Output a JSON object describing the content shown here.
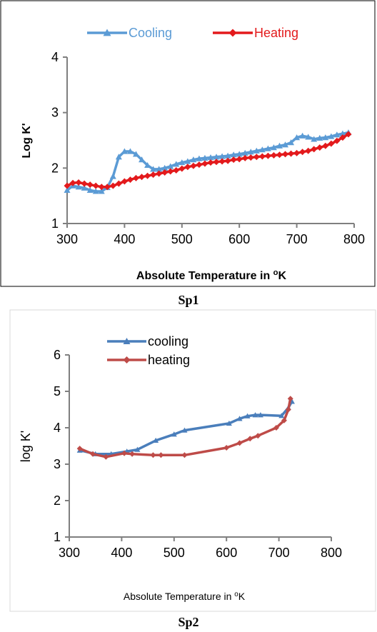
{
  "chart_data": [
    {
      "type": "line",
      "caption": "Sp1",
      "xlabel": "Absolute Temperature in ",
      "xlabel_sup": "o",
      "xlabel_tail": "K",
      "ylabel": "Log K'",
      "xlim": [
        300,
        800
      ],
      "ylim": [
        1,
        4
      ],
      "xticks": [
        300,
        400,
        500,
        600,
        700,
        800
      ],
      "yticks": [
        1,
        2,
        3,
        4
      ],
      "legend": "top",
      "grid": false,
      "series": [
        {
          "name": "Cooling",
          "color": "#5b9bd5",
          "marker": "triangle",
          "x": [
            300,
            310,
            320,
            330,
            340,
            350,
            360,
            370,
            380,
            390,
            400,
            410,
            420,
            430,
            440,
            450,
            460,
            470,
            480,
            490,
            500,
            510,
            520,
            530,
            540,
            550,
            560,
            570,
            580,
            590,
            600,
            610,
            620,
            630,
            640,
            650,
            660,
            670,
            680,
            690,
            700,
            710,
            720,
            730,
            740,
            750,
            760,
            770,
            780,
            790
          ],
          "y": [
            1.6,
            1.68,
            1.66,
            1.64,
            1.6,
            1.58,
            1.58,
            1.65,
            1.85,
            2.2,
            2.3,
            2.3,
            2.25,
            2.15,
            2.05,
            1.98,
            1.98,
            2.0,
            2.03,
            2.07,
            2.1,
            2.12,
            2.15,
            2.17,
            2.18,
            2.19,
            2.2,
            2.21,
            2.22,
            2.24,
            2.25,
            2.27,
            2.29,
            2.31,
            2.33,
            2.35,
            2.37,
            2.4,
            2.42,
            2.46,
            2.55,
            2.58,
            2.56,
            2.52,
            2.54,
            2.55,
            2.57,
            2.6,
            2.62,
            2.64
          ]
        },
        {
          "name": "Heating",
          "color": "#e31a1c",
          "marker": "diamond",
          "x": [
            300,
            310,
            320,
            330,
            340,
            350,
            360,
            370,
            380,
            390,
            400,
            410,
            420,
            430,
            440,
            450,
            460,
            470,
            480,
            490,
            500,
            510,
            520,
            530,
            540,
            550,
            560,
            570,
            580,
            590,
            600,
            610,
            620,
            630,
            640,
            650,
            660,
            670,
            680,
            690,
            700,
            710,
            720,
            730,
            740,
            750,
            760,
            770,
            780,
            790
          ],
          "y": [
            1.68,
            1.73,
            1.74,
            1.72,
            1.7,
            1.68,
            1.66,
            1.66,
            1.68,
            1.72,
            1.76,
            1.79,
            1.82,
            1.84,
            1.86,
            1.88,
            1.9,
            1.92,
            1.94,
            1.96,
            1.99,
            2.02,
            2.04,
            2.06,
            2.08,
            2.1,
            2.11,
            2.12,
            2.13,
            2.15,
            2.16,
            2.18,
            2.19,
            2.2,
            2.21,
            2.22,
            2.23,
            2.24,
            2.25,
            2.26,
            2.27,
            2.29,
            2.31,
            2.34,
            2.37,
            2.4,
            2.44,
            2.49,
            2.55,
            2.61
          ]
        }
      ]
    },
    {
      "type": "line",
      "caption": "Sp2",
      "xlabel": "Absolute Temperature in ",
      "xlabel_sup": "o",
      "xlabel_tail": "K",
      "ylabel": "log  K'",
      "xlim": [
        300,
        800
      ],
      "ylim": [
        1,
        6
      ],
      "xticks": [
        300,
        400,
        500,
        600,
        700,
        800
      ],
      "yticks": [
        1,
        2,
        3,
        4,
        5,
        6
      ],
      "legend": "top-left",
      "grid": false,
      "series": [
        {
          "name": "cooling",
          "color": "#4a7ebb",
          "marker": "triangle",
          "x": [
            320,
            350,
            380,
            410,
            430,
            465,
            500,
            520,
            605,
            625,
            640,
            655,
            665,
            705,
            718,
            725
          ],
          "y": [
            3.38,
            3.28,
            3.28,
            3.35,
            3.4,
            3.65,
            3.82,
            3.93,
            4.12,
            4.25,
            4.32,
            4.35,
            4.35,
            4.33,
            4.55,
            4.72
          ]
        },
        {
          "name": "heating",
          "color": "#be4b48",
          "marker": "diamond",
          "x": [
            320,
            345,
            370,
            405,
            420,
            460,
            475,
            520,
            600,
            625,
            645,
            660,
            695,
            710,
            718,
            722
          ],
          "y": [
            3.43,
            3.28,
            3.2,
            3.3,
            3.28,
            3.25,
            3.25,
            3.25,
            3.45,
            3.58,
            3.7,
            3.78,
            4.0,
            4.2,
            4.5,
            4.8
          ]
        }
      ]
    }
  ]
}
